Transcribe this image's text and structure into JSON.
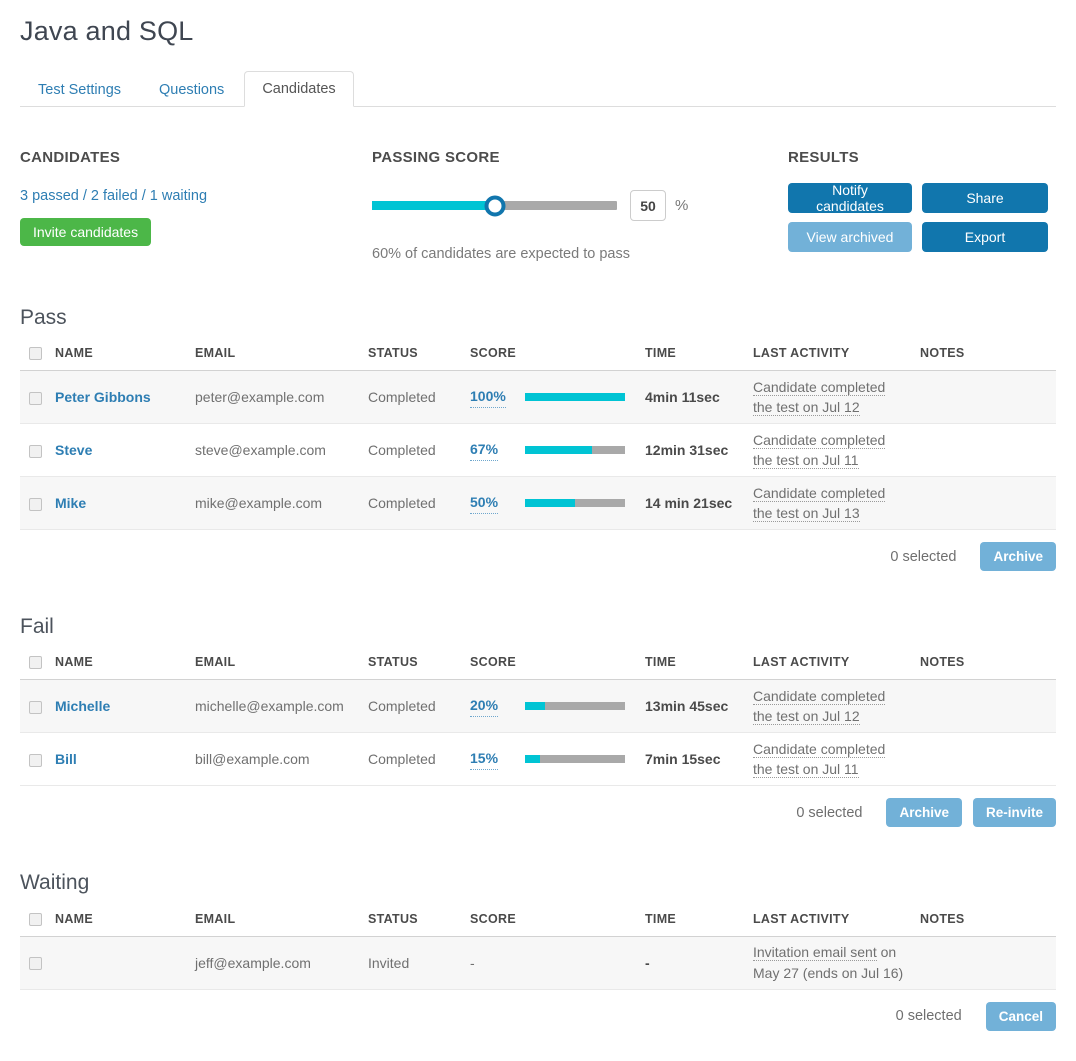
{
  "page": {
    "title": "Java and SQL"
  },
  "tabs": [
    {
      "label": "Test Settings",
      "active": false
    },
    {
      "label": "Questions",
      "active": false
    },
    {
      "label": "Candidates",
      "active": true
    }
  ],
  "candidates_panel": {
    "heading": "CANDIDATES",
    "stats": "3 passed / 2 failed / 1 waiting",
    "invite_button": "Invite candidates"
  },
  "passing_score": {
    "heading": "PASSING SCORE",
    "value": "50",
    "unit": "%",
    "percent": 50,
    "note": "60% of candidates are expected to pass"
  },
  "results_panel": {
    "heading": "RESULTS",
    "buttons": [
      {
        "label": "Notify candidates",
        "variant": "dark"
      },
      {
        "label": "Share",
        "variant": "dark"
      },
      {
        "label": "View archived",
        "variant": "light"
      },
      {
        "label": "Export",
        "variant": "dark"
      }
    ]
  },
  "table_columns": [
    "NAME",
    "EMAIL",
    "STATUS",
    "SCORE",
    "TIME",
    "LAST ACTIVITY",
    "NOTES"
  ],
  "sections": [
    {
      "title": "Pass",
      "rows": [
        {
          "name": "Peter Gibbons",
          "email": "peter@example.com",
          "status": "Completed",
          "score_label": "100%",
          "score_percent": 100,
          "time": "4min 11sec",
          "activity": [
            {
              "u": "Candidate completed",
              "plain": ""
            },
            {
              "u": "the test on Jul 12",
              "plain": ""
            }
          ],
          "notes": ""
        },
        {
          "name": "Steve",
          "email": "steve@example.com",
          "status": "Completed",
          "score_label": "67%",
          "score_percent": 67,
          "time": "12min 31sec",
          "activity": [
            {
              "u": "Candidate completed",
              "plain": ""
            },
            {
              "u": "the test on Jul 11",
              "plain": ""
            }
          ],
          "notes": ""
        },
        {
          "name": "Mike",
          "email": "mike@example.com",
          "status": "Completed",
          "score_label": "50%",
          "score_percent": 50,
          "time": "14 min 21sec",
          "activity": [
            {
              "u": "Candidate completed",
              "plain": ""
            },
            {
              "u": "the test on Jul 13",
              "plain": ""
            }
          ],
          "notes": ""
        }
      ],
      "footer": {
        "selected_label": "0 selected",
        "buttons": [
          "Archive"
        ]
      }
    },
    {
      "title": "Fail",
      "rows": [
        {
          "name": "Michelle",
          "email": "michelle@example.com",
          "status": "Completed",
          "score_label": "20%",
          "score_percent": 20,
          "time": "13min 45sec",
          "activity": [
            {
              "u": "Candidate completed",
              "plain": ""
            },
            {
              "u": "the test on Jul 12",
              "plain": ""
            }
          ],
          "notes": ""
        },
        {
          "name": "Bill",
          "email": "bill@example.com",
          "status": "Completed",
          "score_label": "15%",
          "score_percent": 15,
          "time": "7min 15sec",
          "activity": [
            {
              "u": "Candidate completed",
              "plain": ""
            },
            {
              "u": "the test on Jul 11",
              "plain": ""
            }
          ],
          "notes": ""
        }
      ],
      "footer": {
        "selected_label": "0 selected",
        "buttons": [
          "Archive",
          "Re-invite"
        ]
      }
    },
    {
      "title": "Waiting",
      "rows": [
        {
          "name": "",
          "email": "jeff@example.com",
          "status": "Invited",
          "score_label": "-",
          "score_percent": null,
          "time": "-",
          "activity": [
            {
              "u": "Invitation email sent",
              "plain": " on"
            },
            {
              "u": "",
              "plain": "May 27 (ends on Jul 16)"
            }
          ],
          "notes": ""
        }
      ],
      "footer": {
        "selected_label": "0 selected",
        "buttons": [
          "Cancel"
        ]
      }
    }
  ],
  "colors": {
    "link_blue": "#2e7eb3",
    "invite_green": "#4cb748",
    "button_dark_blue": "#1176ad",
    "button_light_blue": "#72b1d8",
    "bar_cyan": "#00c4d4",
    "bar_gray": "#a9a9a9"
  }
}
